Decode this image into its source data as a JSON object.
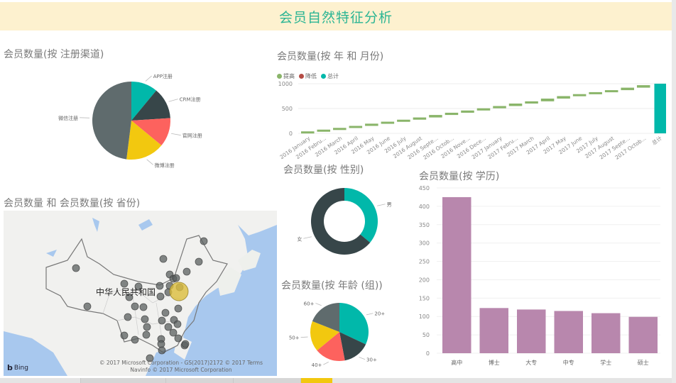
{
  "header": {
    "title": "会员自然特征分析"
  },
  "panels": {
    "channel": {
      "title": "会员数量(按 注册渠道)"
    },
    "monthly": {
      "title": "会员数量(按 年 和 月份)"
    },
    "gender": {
      "title": "会员数量(按 性别)"
    },
    "age": {
      "title": "会员数量(按 年龄 (组))"
    },
    "education": {
      "title": "会员数量(按 学历)"
    },
    "map": {
      "title": "会员数量 和 会员数量(按 省份)",
      "country_label": "中华人民共和国",
      "bing_label": "Bing",
      "copyright_line1": "© 2017 Microsoft Corporation - GS(2017)2172 © 2017 Terms",
      "copyright_line2": "Navinfo © 2017 Microsoft Corporation"
    }
  },
  "colors": {
    "teal": "#01b8aa",
    "dark": "#374649",
    "red": "#fd625e",
    "yellow": "#f2c80f",
    "gray": "#5f6b6d",
    "purple": "#b887ad",
    "green": "#8ab56a",
    "decrease": "#b44b44"
  },
  "chart_data": [
    {
      "type": "pie",
      "title": "会员数量(按 注册渠道)",
      "categories": [
        "APP注册",
        "CRM注册",
        "官网注册",
        "微博注册",
        "微信注册"
      ],
      "values": [
        11,
        13,
        12,
        16,
        48
      ],
      "colors": [
        "#01b8aa",
        "#374649",
        "#fd625e",
        "#f2c80f",
        "#5f6b6d"
      ]
    },
    {
      "type": "waterfall",
      "title": "会员数量(按 年 和 月份)",
      "legend": [
        "提高",
        "降低",
        "总计"
      ],
      "categories": [
        "2016 January",
        "2016 Febru...",
        "2016 March",
        "2016 April",
        "2016 May",
        "2016 June",
        "2016 July",
        "2016 August",
        "2016 Septe...",
        "2016 Octob...",
        "2016 Nove...",
        "2016 Dece...",
        "2017 January",
        "2017 Febru...",
        "2017 March",
        "2017 April",
        "2017 May",
        "2017 June",
        "2017 July",
        "2017 August",
        "2017 Septe...",
        "2017 Octob...",
        "总计"
      ],
      "cumulative": [
        40,
        75,
        110,
        150,
        195,
        235,
        275,
        320,
        370,
        415,
        460,
        505,
        550,
        600,
        645,
        700,
        750,
        790,
        830,
        870,
        920,
        970,
        1000
      ],
      "yticks": [
        0,
        500,
        1000
      ],
      "ylim": [
        0,
        1000
      ]
    },
    {
      "type": "pie",
      "subtype": "donut",
      "title": "会员数量(按 性别)",
      "categories": [
        "男",
        "女"
      ],
      "values": [
        36,
        64
      ],
      "colors": [
        "#01b8aa",
        "#374649"
      ]
    },
    {
      "type": "pie",
      "title": "会员数量(按 年龄 (组))",
      "categories": [
        "20+",
        "30+",
        "40+",
        "50+",
        "60+"
      ],
      "values": [
        32,
        15,
        17,
        17,
        19
      ],
      "colors": [
        "#01b8aa",
        "#374649",
        "#fd625e",
        "#f2c80f",
        "#5f6b6d"
      ]
    },
    {
      "type": "bar",
      "title": "会员数量(按 学历)",
      "categories": [
        "高中",
        "博士",
        "大专",
        "中专",
        "学士",
        "硕士"
      ],
      "values": [
        425,
        123,
        119,
        115,
        109,
        99
      ],
      "yticks": [
        0,
        50,
        100,
        150,
        200,
        250,
        300,
        350,
        400,
        450
      ],
      "ylim": [
        0,
        450
      ]
    }
  ]
}
